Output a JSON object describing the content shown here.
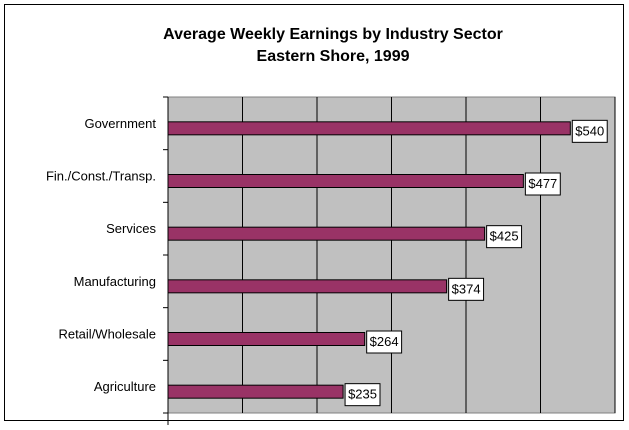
{
  "chart_data": {
    "type": "barh",
    "title": "Average Weekly Earnings by Industry Sector",
    "subtitle": "Eastern Shore, 1999",
    "categories": [
      "Government",
      "Fin./Const./Transp.",
      "Services",
      "Manufacturing",
      "Retail/Wholesale",
      "Agriculture"
    ],
    "values": [
      540,
      477,
      425,
      374,
      264,
      235
    ],
    "value_labels": [
      "$540",
      "$477",
      "$425",
      "$374",
      "$264",
      "$235"
    ],
    "color": "#993366",
    "xlim": [
      0,
      600
    ],
    "xticks": [
      0,
      100,
      200,
      300,
      400,
      500,
      600
    ],
    "grid": true
  }
}
